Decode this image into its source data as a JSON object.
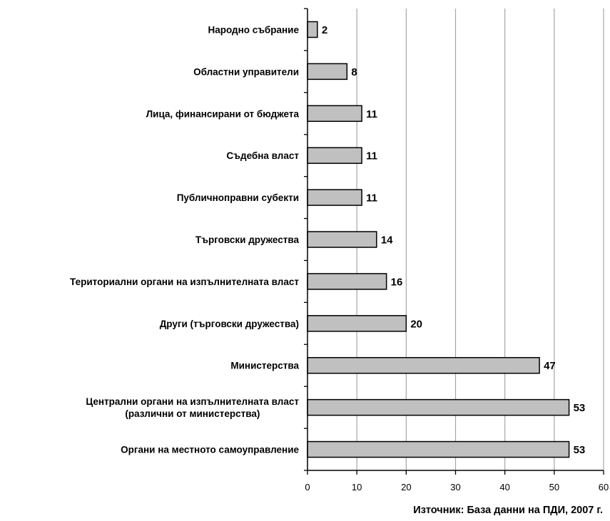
{
  "chart_data": {
    "type": "bar",
    "orientation": "horizontal",
    "categories": [
      [
        "Народно събрание"
      ],
      [
        "Областни управители"
      ],
      [
        "Лица, финансирани от бюджета"
      ],
      [
        "Съдебна власт"
      ],
      [
        "Публичноправни субекти"
      ],
      [
        "Търговски дружества"
      ],
      [
        "Териториални органи на изпълнителната власт"
      ],
      [
        "Други (търговски дружества)"
      ],
      [
        "Министерства"
      ],
      [
        "Централни органи на изпълнителната власт",
        "(различни от министерства)"
      ],
      [
        "Органи на местното самоуправление"
      ]
    ],
    "values": [
      2,
      8,
      11,
      11,
      11,
      14,
      16,
      20,
      47,
      53,
      53
    ],
    "xlim": [
      0,
      60
    ],
    "xticks": [
      0,
      10,
      20,
      30,
      40,
      50,
      60
    ],
    "grid": "vertical",
    "data_labels": true,
    "source_note": "Източник: База данни на ПДИ, 2007 г.",
    "colors": {
      "bar_fill": "#c0c0c0",
      "bar_stroke": "#000000",
      "grid": "#a6a6a6",
      "text": "#000000"
    }
  }
}
